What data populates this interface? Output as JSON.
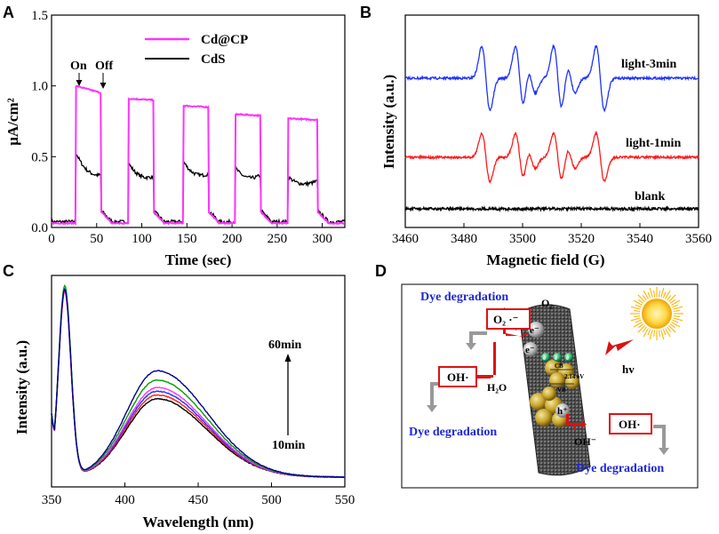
{
  "panel_labels": {
    "a": "A",
    "b": "B",
    "c": "C",
    "d": "D"
  },
  "chart_data": [
    {
      "panel": "A",
      "type": "line",
      "xlabel": "Time (sec)",
      "ylabel": "μA/cm²",
      "xlim": [
        0,
        325
      ],
      "ylim": [
        0,
        1.5
      ],
      "xticks": [
        "0",
        "50",
        "100",
        "150",
        "200",
        "250",
        "300"
      ],
      "yticks": [
        "0.0",
        "0.5",
        "1.0",
        "1.5"
      ],
      "legend": [
        "Cd@CP",
        "CdS"
      ],
      "annotations": {
        "on": "On",
        "off": "Off"
      },
      "cycles": [
        {
          "on": 27,
          "off": 55
        },
        {
          "on": 85,
          "off": 113
        },
        {
          "on": 146,
          "off": 174
        },
        {
          "on": 204,
          "off": 232
        },
        {
          "on": 262,
          "off": 295
        }
      ],
      "series": [
        {
          "name": "Cd@CP",
          "color": "#ff33ff",
          "plateau_start": [
            1.0,
            0.91,
            0.86,
            0.8,
            0.77
          ],
          "plateau_end": [
            0.95,
            0.9,
            0.85,
            0.79,
            0.76
          ],
          "baseline": 0.03
        },
        {
          "name": "CdS",
          "color": "#000000",
          "plateau_start": [
            0.53,
            0.46,
            0.47,
            0.42,
            0.36
          ],
          "plateau_end": [
            0.37,
            0.36,
            0.38,
            0.37,
            0.33
          ],
          "baseline": 0.04
        }
      ]
    },
    {
      "panel": "B",
      "type": "line",
      "xlabel": "Magnetic field (G)",
      "ylabel": "Intensity (a.u.)",
      "xlim": [
        3460,
        3560
      ],
      "xticks": [
        "3460",
        "3480",
        "3500",
        "3520",
        "3540",
        "3560"
      ],
      "peak_positions": [
        3487.5,
        3499,
        3503,
        3512,
        3516.5,
        3526.5
      ],
      "peak_amplitudes": [
        1.0,
        1.0,
        0.45,
        1.0,
        0.45,
        1.0
      ],
      "series": [
        {
          "name": "light-3min",
          "color": "#1f32ff",
          "scale": 1.0
        },
        {
          "name": "light-1min",
          "color": "#ff1a1a",
          "scale": 0.75
        },
        {
          "name": "blank",
          "color": "#000000",
          "scale": 0.0
        }
      ]
    },
    {
      "panel": "C",
      "type": "line",
      "xlabel": "Wavelength (nm)",
      "ylabel": "Intensity (a.u.)",
      "xlim": [
        350,
        550
      ],
      "xticks": [
        "350",
        "400",
        "450",
        "500",
        "550"
      ],
      "time_labels": {
        "top": "60min",
        "bottom": "10min"
      },
      "peak1_position": 359,
      "peak2_position": 422,
      "series": [
        {
          "color": "#000000",
          "peak1": 1.0,
          "peak2": 0.42
        },
        {
          "color": "#ff1a1a",
          "peak1": 0.99,
          "peak2": 0.44
        },
        {
          "color": "#1f32ff",
          "peak1": 1.0,
          "peak2": 0.46
        },
        {
          "color": "#ff33ff",
          "peak1": 0.99,
          "peak2": 0.48
        },
        {
          "color": "#00a000",
          "peak1": 1.02,
          "peak2": 0.52
        },
        {
          "color": "#00008b",
          "peak1": 1.0,
          "peak2": 0.57
        }
      ]
    }
  ],
  "diagram": {
    "dye_top": "Dye degradation",
    "o2": "O₂",
    "superoxide": "O₂ ·⁻",
    "e1": "e⁻",
    "e2": "e⁻",
    "hv": "hv",
    "oh_left": "OH·",
    "h2o": "H₂O",
    "cb": "CB",
    "gap": "2.14 eV",
    "vb": "VB",
    "hplus": "h⁺",
    "oh_right": "OH·",
    "oh_minus": "OH⁻",
    "dye_left": "Dye degradation",
    "dye_right": "Dye degradation"
  }
}
